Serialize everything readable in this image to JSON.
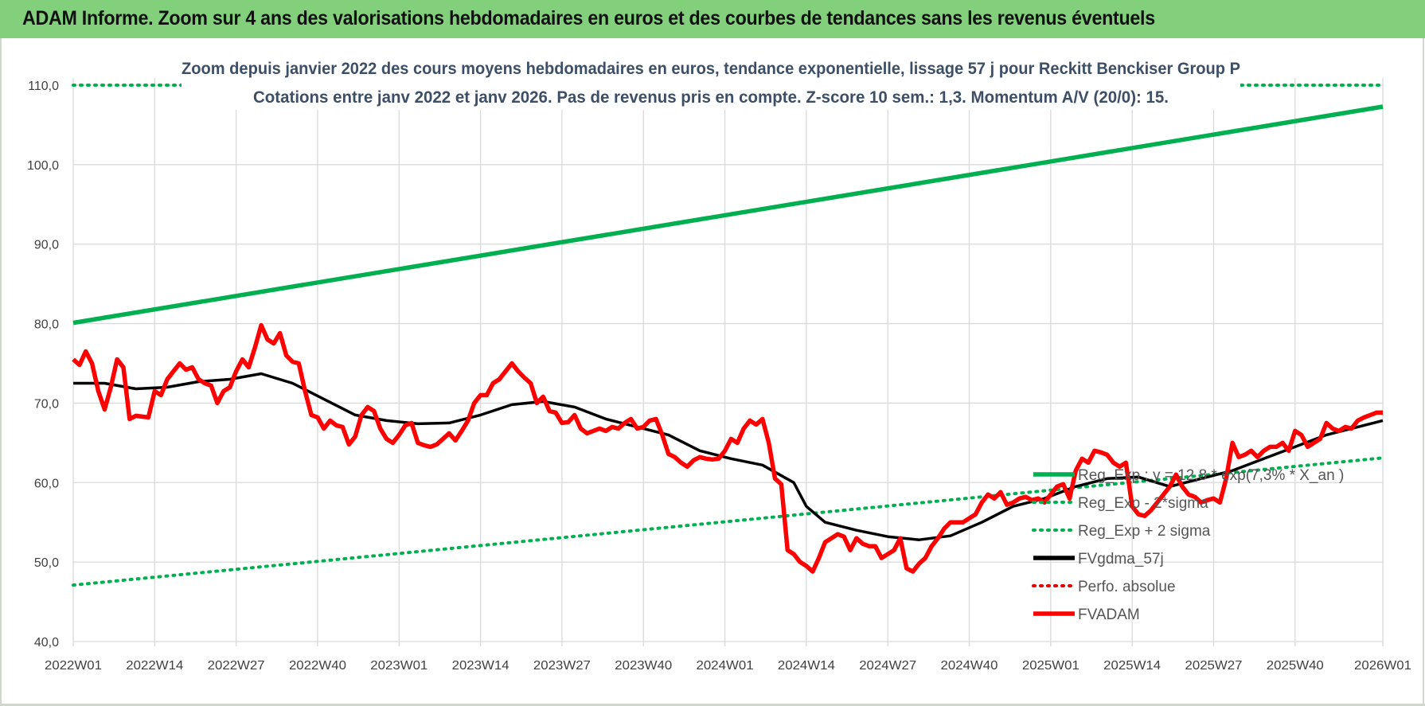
{
  "header": {
    "title": "ADAM Informe. Zoom sur 4 ans des valorisations hebdomadaires en euros et des courbes de tendances sans les revenus éventuels"
  },
  "chart_data": {
    "type": "line",
    "subtitle_line1": "Zoom depuis janvier 2022 des cours moyens hebdomadaires en euros, tendance exponentielle, lissage 57 j pour Reckitt Benckiser Group P",
    "subtitle_line2": "Cotations entre janv 2022 et janv 2026. Pas de revenus pris en compte. Z-score 10 sem.: 1,3. Momentum A/V (20/0): 15.",
    "ylim": [
      40,
      110
    ],
    "yticks": [
      "40,0",
      "50,0",
      "60,0",
      "70,0",
      "80,0",
      "90,0",
      "100,0",
      "110,0"
    ],
    "xlim": [
      0,
      209
    ],
    "x_tick_labels": [
      "2022W01",
      "2022W14",
      "2022W27",
      "2022W40",
      "2023W01",
      "2023W14",
      "2023W27",
      "2023W40",
      "2024W01",
      "2024W14",
      "2024W27",
      "2024W40",
      "2025W01",
      "2025W14",
      "2025W27",
      "2025W40",
      "2026W01"
    ],
    "x_tick_index": [
      0,
      13,
      26,
      39,
      52,
      65,
      78,
      91,
      104,
      117,
      130,
      143,
      156,
      169,
      182,
      195,
      209
    ],
    "grid": true,
    "legend_position": "bottom-right",
    "series": [
      {
        "name": "Reg_Exp : y = 12,8 * exp(7,3% * X_an )",
        "color": "#00b050",
        "style": "solid",
        "points": [
          [
            0,
            80.1
          ],
          [
            209,
            107.3
          ]
        ]
      },
      {
        "name": "Reg_Exp - 2*sigma",
        "color": "#00b050",
        "style": "dotted",
        "points": [
          [
            0,
            47.1
          ],
          [
            209,
            63.1
          ]
        ]
      },
      {
        "name": "Reg_Exp + 2 sigma",
        "color": "#00b050",
        "style": "dotted",
        "points": [
          [
            0,
            110.0
          ],
          [
            209,
            110.0
          ]
        ]
      },
      {
        "name": "FVgdma_57j",
        "color": "#000000",
        "style": "solid",
        "points": [
          [
            0,
            72.5
          ],
          [
            5,
            72.5
          ],
          [
            10,
            71.8
          ],
          [
            15,
            72.0
          ],
          [
            20,
            72.7
          ],
          [
            25,
            73.0
          ],
          [
            30,
            73.7
          ],
          [
            35,
            72.5
          ],
          [
            40,
            70.5
          ],
          [
            45,
            68.5
          ],
          [
            50,
            67.8
          ],
          [
            55,
            67.4
          ],
          [
            60,
            67.5
          ],
          [
            65,
            68.5
          ],
          [
            70,
            69.8
          ],
          [
            75,
            70.2
          ],
          [
            80,
            69.5
          ],
          [
            85,
            68.0
          ],
          [
            90,
            67.0
          ],
          [
            95,
            66.0
          ],
          [
            100,
            64.0
          ],
          [
            105,
            63.0
          ],
          [
            110,
            62.2
          ],
          [
            115,
            60.0
          ],
          [
            117,
            57.0
          ],
          [
            120,
            55.0
          ],
          [
            125,
            54.0
          ],
          [
            130,
            53.2
          ],
          [
            135,
            52.8
          ],
          [
            140,
            53.3
          ],
          [
            145,
            55.0
          ],
          [
            150,
            57.0
          ],
          [
            155,
            58.0
          ],
          [
            160,
            59.5
          ],
          [
            165,
            60.5
          ],
          [
            170,
            60.7
          ],
          [
            175,
            59.5
          ],
          [
            180,
            60.5
          ],
          [
            185,
            61.5
          ],
          [
            190,
            63.0
          ],
          [
            195,
            64.5
          ],
          [
            200,
            66.0
          ],
          [
            205,
            67.0
          ],
          [
            209,
            67.8
          ]
        ]
      },
      {
        "name": "Perfo. absolue",
        "color": "#e60000",
        "style": "dotted",
        "points": []
      },
      {
        "name": "FVADAM",
        "color": "#ff0000",
        "style": "solid",
        "points": [
          [
            0,
            75.5
          ],
          [
            1,
            74.8
          ],
          [
            2,
            76.5
          ],
          [
            3,
            75.0
          ],
          [
            4,
            71.5
          ],
          [
            5,
            69.2
          ],
          [
            6,
            72.0
          ],
          [
            7,
            75.5
          ],
          [
            8,
            74.5
          ],
          [
            9,
            68.0
          ],
          [
            10,
            68.4
          ],
          [
            11,
            68.3
          ],
          [
            12,
            68.2
          ],
          [
            13,
            71.5
          ],
          [
            14,
            71.0
          ],
          [
            15,
            73.0
          ],
          [
            16,
            74.0
          ],
          [
            17,
            75.0
          ],
          [
            18,
            74.2
          ],
          [
            19,
            74.5
          ],
          [
            20,
            73.0
          ],
          [
            21,
            72.5
          ],
          [
            22,
            72.2
          ],
          [
            23,
            70.0
          ],
          [
            24,
            71.5
          ],
          [
            25,
            72.0
          ],
          [
            26,
            74.0
          ],
          [
            27,
            75.5
          ],
          [
            28,
            74.5
          ],
          [
            29,
            77.0
          ],
          [
            30,
            79.8
          ],
          [
            31,
            78.0
          ],
          [
            32,
            77.5
          ],
          [
            33,
            78.8
          ],
          [
            34,
            76.0
          ],
          [
            35,
            75.2
          ],
          [
            36,
            75.0
          ],
          [
            37,
            71.5
          ],
          [
            38,
            68.5
          ],
          [
            39,
            68.2
          ],
          [
            40,
            66.8
          ],
          [
            41,
            67.8
          ],
          [
            42,
            67.2
          ],
          [
            43,
            67.0
          ],
          [
            44,
            64.8
          ],
          [
            45,
            65.8
          ],
          [
            46,
            68.5
          ],
          [
            47,
            69.5
          ],
          [
            48,
            69.0
          ],
          [
            49,
            66.8
          ],
          [
            50,
            65.5
          ],
          [
            51,
            65.0
          ],
          [
            52,
            66.0
          ],
          [
            53,
            67.2
          ],
          [
            54,
            67.5
          ],
          [
            55,
            65.0
          ],
          [
            56,
            64.7
          ],
          [
            57,
            64.5
          ],
          [
            58,
            64.8
          ],
          [
            59,
            65.5
          ],
          [
            60,
            66.2
          ],
          [
            61,
            65.3
          ],
          [
            62,
            66.5
          ],
          [
            63,
            67.8
          ],
          [
            64,
            70.0
          ],
          [
            65,
            71.0
          ],
          [
            66,
            71.0
          ],
          [
            67,
            72.5
          ],
          [
            68,
            73.0
          ],
          [
            69,
            74.0
          ],
          [
            70,
            75.0
          ],
          [
            71,
            74.0
          ],
          [
            72,
            73.2
          ],
          [
            73,
            72.5
          ],
          [
            74,
            70.0
          ],
          [
            75,
            70.8
          ],
          [
            76,
            69.0
          ],
          [
            77,
            68.8
          ],
          [
            78,
            67.5
          ],
          [
            79,
            67.6
          ],
          [
            80,
            68.5
          ],
          [
            81,
            66.8
          ],
          [
            82,
            66.2
          ],
          [
            83,
            66.5
          ],
          [
            84,
            66.8
          ],
          [
            85,
            66.5
          ],
          [
            86,
            67.0
          ],
          [
            87,
            66.8
          ],
          [
            88,
            67.5
          ],
          [
            89,
            68.0
          ],
          [
            90,
            66.8
          ],
          [
            91,
            67.0
          ],
          [
            92,
            67.8
          ],
          [
            93,
            68.0
          ],
          [
            94,
            66.0
          ],
          [
            95,
            63.6
          ],
          [
            96,
            63.2
          ],
          [
            97,
            62.5
          ],
          [
            98,
            62.0
          ],
          [
            99,
            62.8
          ],
          [
            100,
            63.2
          ],
          [
            101,
            63.0
          ],
          [
            102,
            62.9
          ],
          [
            103,
            63.0
          ],
          [
            104,
            64.0
          ],
          [
            105,
            65.5
          ],
          [
            106,
            65.0
          ],
          [
            107,
            66.8
          ],
          [
            108,
            67.8
          ],
          [
            109,
            67.3
          ],
          [
            110,
            68.0
          ],
          [
            111,
            65.0
          ],
          [
            112,
            60.5
          ],
          [
            113,
            59.8
          ],
          [
            114,
            51.5
          ],
          [
            115,
            51.0
          ],
          [
            116,
            50.0
          ],
          [
            117,
            49.5
          ],
          [
            118,
            48.8
          ],
          [
            119,
            50.5
          ],
          [
            120,
            52.5
          ],
          [
            121,
            53.0
          ],
          [
            122,
            53.5
          ],
          [
            123,
            53.2
          ],
          [
            124,
            51.5
          ],
          [
            125,
            53.0
          ],
          [
            126,
            52.3
          ],
          [
            127,
            52.0
          ],
          [
            128,
            52.0
          ],
          [
            129,
            50.5
          ],
          [
            130,
            51.0
          ],
          [
            131,
            51.5
          ],
          [
            132,
            53.0
          ],
          [
            133,
            49.2
          ],
          [
            134,
            48.8
          ],
          [
            135,
            49.8
          ],
          [
            136,
            50.5
          ],
          [
            137,
            52.0
          ],
          [
            138,
            53.0
          ],
          [
            139,
            54.2
          ],
          [
            140,
            55.0
          ],
          [
            141,
            55.0
          ],
          [
            142,
            55.0
          ],
          [
            143,
            55.5
          ],
          [
            144,
            56.0
          ],
          [
            145,
            57.5
          ],
          [
            146,
            58.5
          ],
          [
            147,
            58.0
          ],
          [
            148,
            58.8
          ],
          [
            149,
            57.2
          ],
          [
            150,
            57.5
          ],
          [
            151,
            58.0
          ],
          [
            152,
            58.2
          ],
          [
            153,
            57.8
          ],
          [
            154,
            58.0
          ],
          [
            155,
            57.5
          ],
          [
            156,
            58.5
          ],
          [
            157,
            59.5
          ],
          [
            158,
            59.8
          ],
          [
            159,
            58.0
          ],
          [
            160,
            61.5
          ],
          [
            161,
            63.0
          ],
          [
            162,
            62.5
          ],
          [
            163,
            64.0
          ],
          [
            164,
            63.8
          ],
          [
            165,
            63.5
          ],
          [
            166,
            62.5
          ],
          [
            167,
            62.0
          ],
          [
            168,
            62.5
          ],
          [
            169,
            57.0
          ],
          [
            170,
            56.0
          ],
          [
            171,
            55.8
          ],
          [
            172,
            56.5
          ],
          [
            173,
            57.5
          ],
          [
            174,
            58.5
          ],
          [
            175,
            59.5
          ],
          [
            176,
            61.0
          ],
          [
            177,
            59.5
          ],
          [
            178,
            58.5
          ],
          [
            179,
            58.2
          ],
          [
            180,
            57.5
          ],
          [
            181,
            57.8
          ],
          [
            182,
            58.0
          ],
          [
            183,
            57.5
          ],
          [
            184,
            60.5
          ],
          [
            185,
            65.0
          ],
          [
            186,
            63.2
          ],
          [
            187,
            63.5
          ],
          [
            188,
            64.0
          ],
          [
            189,
            63.2
          ],
          [
            190,
            64.0
          ],
          [
            191,
            64.5
          ],
          [
            192,
            64.5
          ],
          [
            193,
            65.0
          ],
          [
            194,
            64.0
          ],
          [
            195,
            66.5
          ],
          [
            196,
            66.0
          ],
          [
            197,
            64.5
          ],
          [
            198,
            65.0
          ],
          [
            199,
            65.5
          ],
          [
            200,
            67.5
          ],
          [
            201,
            66.8
          ],
          [
            202,
            66.5
          ],
          [
            203,
            67.0
          ],
          [
            204,
            66.8
          ],
          [
            205,
            67.8
          ],
          [
            206,
            68.2
          ],
          [
            207,
            68.5
          ],
          [
            208,
            68.8
          ],
          [
            209,
            68.8
          ]
        ]
      }
    ]
  }
}
